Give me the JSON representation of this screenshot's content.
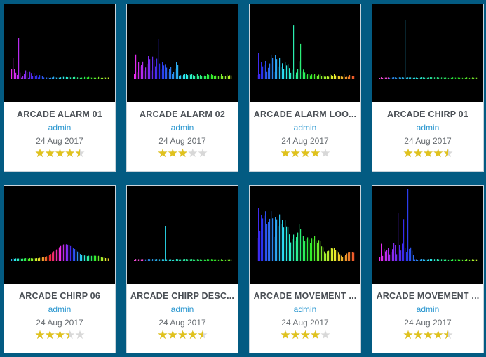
{
  "colors": {
    "background": "#035b82",
    "star_on": "#e0c21d",
    "star_off": "#d8d8d8",
    "author": "#2a97d0"
  },
  "sounds": [
    {
      "title": "ARCADE ALARM 01",
      "author": "admin",
      "date": "24 Aug 2017",
      "rating": 4.5,
      "palette": "warm",
      "pattern": "alarm01"
    },
    {
      "title": "ARCADE ALARM 02",
      "author": "admin",
      "date": "24 Aug 2017",
      "rating": 3,
      "palette": "warm",
      "pattern": "alarm02"
    },
    {
      "title": "ARCADE ALARM LOO...",
      "author": "admin",
      "date": "24 Aug 2017",
      "rating": 4,
      "palette": "mixed",
      "pattern": "alarmloop"
    },
    {
      "title": "ARCADE CHIRP 01",
      "author": "admin",
      "date": "24 Aug 2017",
      "rating": 4.5,
      "palette": "pink",
      "pattern": "chirp01"
    },
    {
      "title": "ARCADE CHIRP 06",
      "author": "admin",
      "date": "24 Aug 2017",
      "rating": 3.5,
      "palette": "rainbow",
      "pattern": "chirp06"
    },
    {
      "title": "ARCADE CHIRP DESC...",
      "author": "admin",
      "date": "24 Aug 2017",
      "rating": 4.5,
      "palette": "pink",
      "pattern": "chirpdesc"
    },
    {
      "title": "ARCADE MOVEMENT ...",
      "author": "admin",
      "date": "24 Aug 2017",
      "rating": 4,
      "palette": "mixed",
      "pattern": "movement1"
    },
    {
      "title": "ARCADE MOVEMENT ...",
      "author": "admin",
      "date": "24 Aug 2017",
      "rating": 4.5,
      "palette": "warm",
      "pattern": "movement2"
    }
  ]
}
